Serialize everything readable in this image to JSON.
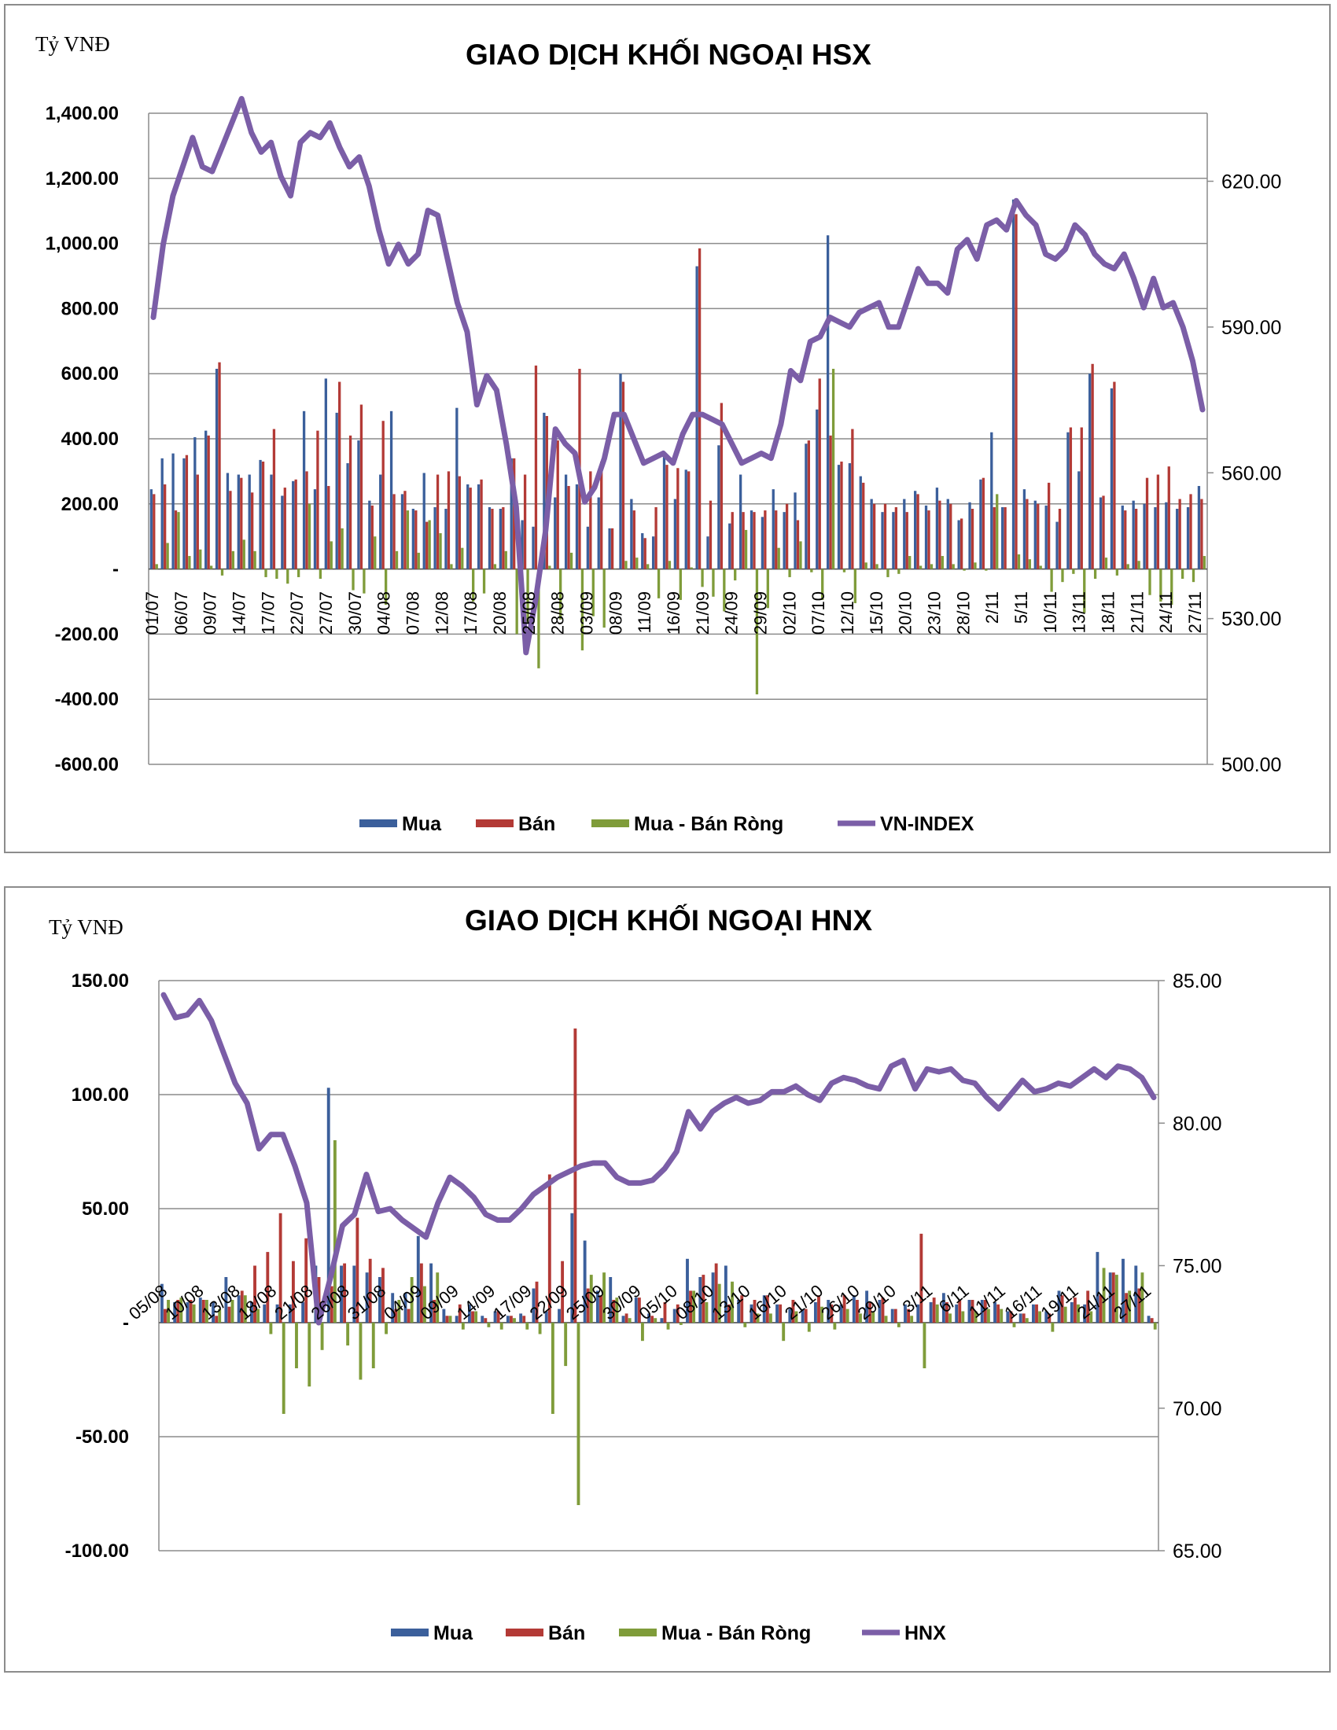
{
  "colors": {
    "buy": "#3b5f9b",
    "sell": "#b33a36",
    "net": "#7f9c3a",
    "index": "#7b5ea7",
    "grid": "#8c8c8c"
  },
  "chart_data": [
    {
      "type": "bar",
      "title": "GIAO DỊCH KHỐI NGOẠI HSX",
      "unit_label": "Tỷ VNĐ",
      "ylim": [
        -600,
        1400
      ],
      "y_ticks": [
        "1,400.00",
        "1,200.00",
        "1,000.00",
        "800.00",
        "600.00",
        "400.00",
        "200.00",
        "-",
        "-200.00",
        "-400.00",
        "-600.00"
      ],
      "y2_ticks": [
        "620.00",
        "590.00",
        "560.00",
        "530.00",
        "500.00"
      ],
      "y2lim": [
        500,
        634
      ],
      "x_tick_labels": [
        "01/07",
        "06/07",
        "09/07",
        "14/07",
        "17/07",
        "22/07",
        "27/07",
        "30/07",
        "04/08",
        "07/08",
        "12/08",
        "17/08",
        "20/08",
        "25/08",
        "28/08",
        "03/09",
        "08/09",
        "11/09",
        "16/09",
        "21/09",
        "24/09",
        "29/09",
        "02/10",
        "07/10",
        "12/10",
        "15/10",
        "20/10",
        "23/10",
        "28/10",
        "2/11",
        "5/11",
        "10/11",
        "13/11",
        "18/11",
        "21/11",
        "24/11",
        "27/11"
      ],
      "legend": [
        "Mua",
        "Bán",
        "Mua - Bán Ròng",
        "VN-INDEX"
      ],
      "legend_position": "bottom",
      "grid": true,
      "series": [
        {
          "name": "Mua",
          "axis": "left",
          "values": [
            245,
            340,
            355,
            340,
            405,
            425,
            615,
            295,
            290,
            290,
            335,
            290,
            225,
            270,
            485,
            245,
            585,
            480,
            325,
            395,
            210,
            290,
            485,
            230,
            185,
            295,
            190,
            185,
            495,
            260,
            260,
            190,
            185,
            340,
            150,
            130,
            480,
            220,
            290,
            260,
            130,
            220,
            125,
            600,
            215,
            110,
            100,
            345,
            215,
            305,
            930,
            100,
            380,
            140,
            290,
            180,
            160,
            245,
            175,
            235,
            385,
            490,
            1025,
            320,
            325,
            285,
            215,
            175,
            175,
            215,
            240,
            195,
            250,
            215,
            150,
            205,
            275,
            420,
            190,
            1135,
            245,
            210,
            195,
            145,
            420,
            300,
            600,
            220,
            555,
            195,
            210,
            200,
            190,
            205,
            185,
            190,
            255
          ]
        },
        {
          "name": "Bán",
          "axis": "left",
          "values": [
            230,
            260,
            180,
            350,
            290,
            410,
            635,
            240,
            280,
            235,
            330,
            430,
            250,
            275,
            300,
            425,
            255,
            575,
            410,
            505,
            195,
            455,
            230,
            240,
            180,
            145,
            290,
            300,
            285,
            250,
            275,
            185,
            190,
            340,
            290,
            625,
            470,
            395,
            255,
            615,
            300,
            330,
            125,
            575,
            180,
            95,
            190,
            320,
            310,
            300,
            985,
            210,
            510,
            175,
            175,
            175,
            180,
            180,
            200,
            150,
            395,
            585,
            410,
            330,
            430,
            265,
            200,
            200,
            190,
            175,
            230,
            180,
            210,
            200,
            155,
            185,
            280,
            190,
            190,
            1090,
            215,
            200,
            265,
            185,
            435,
            435,
            630,
            225,
            575,
            180,
            185,
            280,
            290,
            315,
            215,
            230,
            215
          ]
        },
        {
          "name": "Mua - Bán Ròng",
          "axis": "left",
          "values": [
            15,
            80,
            175,
            40,
            60,
            10,
            -20,
            55,
            90,
            55,
            -25,
            -30,
            -45,
            -25,
            200,
            -30,
            85,
            125,
            -65,
            -75,
            100,
            -110,
            55,
            180,
            50,
            150,
            110,
            15,
            65,
            -100,
            -75,
            15,
            55,
            -200,
            -165,
            -305,
            10,
            -155,
            50,
            -250,
            -145,
            -180,
            0,
            25,
            35,
            15,
            -90,
            25,
            -95,
            5,
            -55,
            -85,
            -130,
            -35,
            120,
            -385,
            -120,
            65,
            -25,
            85,
            -10,
            -95,
            615,
            -10,
            -105,
            20,
            15,
            -25,
            -15,
            40,
            10,
            15,
            40,
            15,
            -5,
            20,
            -5,
            230,
            0,
            45,
            30,
            10,
            -70,
            -40,
            -15,
            -135,
            -30,
            35,
            -20,
            15,
            25,
            -80,
            -100,
            -110,
            -30,
            -40,
            40
          ]
        },
        {
          "name": "VN-INDEX",
          "axis": "right",
          "values": [
            592,
            607,
            617,
            623,
            629,
            623,
            622,
            627,
            632,
            637,
            630,
            626,
            628,
            621,
            617,
            628,
            630,
            629,
            632,
            627,
            623,
            625,
            619,
            610,
            603,
            607,
            603,
            605,
            614,
            613,
            604,
            595,
            589,
            574,
            580,
            577,
            566,
            553,
            523,
            534,
            548,
            569,
            566,
            564,
            554,
            557,
            563,
            572,
            572,
            567,
            562,
            563,
            564,
            562,
            568,
            572,
            572,
            571,
            570,
            566,
            562,
            563,
            564,
            563,
            570,
            581,
            579,
            587,
            588,
            592,
            591,
            590,
            593,
            594,
            595,
            590,
            590,
            596,
            602,
            599,
            599,
            597,
            606,
            608,
            604,
            611,
            612,
            610,
            616,
            613,
            611,
            605,
            604,
            606,
            611,
            609,
            605,
            603,
            602,
            605,
            600,
            594,
            600,
            594,
            595,
            590,
            583,
            573
          ]
        }
      ]
    },
    {
      "type": "bar",
      "title": "GIAO DỊCH KHỐI NGOẠI HNX",
      "unit_label": "Tỷ VNĐ",
      "ylim": [
        -100,
        150
      ],
      "y_ticks": [
        "150.00",
        "100.00",
        "50.00",
        "-",
        "-50.00",
        "-100.00"
      ],
      "y2_ticks": [
        "85.00",
        "80.00",
        "75.00",
        "70.00",
        "65.00"
      ],
      "y2lim": [
        65,
        85
      ],
      "x_tick_labels": [
        "05/08",
        "10/08",
        "13/08",
        "18/08",
        "21/08",
        "26/08",
        "31/08",
        "04/09",
        "09/09",
        "14/09",
        "17/09",
        "22/09",
        "25/09",
        "30/09",
        "05/10",
        "08/10",
        "13/10",
        "16/10",
        "21/10",
        "26/10",
        "29/10",
        "3/11",
        "6/11",
        "11/11",
        "16/11",
        "19/11",
        "24/11",
        "27/11"
      ],
      "legend": [
        "Mua",
        "Bán",
        "Mua - Bán Ròng",
        "HNX"
      ],
      "legend_position": "bottom",
      "grid": true,
      "series": [
        {
          "name": "Mua",
          "axis": "left",
          "values": [
            17,
            9,
            9,
            11,
            9,
            20,
            12,
            9,
            8,
            8,
            8,
            9,
            25,
            103,
            25,
            25,
            22,
            20,
            13,
            13,
            38,
            26,
            6,
            3,
            8,
            3,
            5,
            3,
            4,
            15,
            5,
            6,
            48,
            36,
            14,
            20,
            3,
            11,
            4,
            2,
            6,
            28,
            20,
            22,
            25,
            10,
            8,
            12,
            8,
            6,
            6,
            9,
            10,
            8,
            12,
            14,
            10,
            6,
            8,
            8,
            9,
            13,
            8,
            10,
            10,
            9,
            5,
            4,
            8,
            5,
            14,
            9,
            8,
            31,
            22,
            28,
            25,
            3
          ]
        },
        {
          "name": "Bán",
          "axis": "left",
          "values": [
            6,
            10,
            10,
            10,
            3,
            7,
            14,
            25,
            31,
            48,
            27,
            37,
            20,
            16,
            26,
            46,
            28,
            24,
            6,
            6,
            26,
            10,
            3,
            8,
            5,
            2,
            5,
            3,
            3,
            18,
            65,
            27,
            129,
            15,
            12,
            10,
            4,
            11,
            3,
            9,
            8,
            14,
            21,
            26,
            8,
            12,
            10,
            12,
            8,
            10,
            6,
            12,
            8,
            12,
            10,
            9,
            11,
            6,
            6,
            39,
            11,
            9,
            10,
            10,
            10,
            8,
            5,
            4,
            8,
            4,
            12,
            11,
            14,
            12,
            22,
            13,
            15,
            2
          ]
        },
        {
          "name": "Mua - Bán Ròng",
          "axis": "left",
          "values": [
            10,
            11,
            8,
            10,
            6,
            10,
            12,
            6,
            -5,
            -40,
            -20,
            -28,
            -12,
            80,
            -10,
            -25,
            -20,
            -5,
            10,
            20,
            16,
            22,
            3,
            -3,
            5,
            -2,
            -3,
            2,
            -3,
            -5,
            -40,
            -19,
            -80,
            21,
            22,
            11,
            2,
            -8,
            2,
            -3,
            -1,
            14,
            9,
            17,
            18,
            -2,
            4,
            4,
            -8,
            5,
            -4,
            7,
            -3,
            6,
            4,
            5,
            3,
            -2,
            3,
            -20,
            8,
            4,
            5,
            5,
            6,
            6,
            -2,
            2,
            5,
            -4,
            7,
            8,
            5,
            24,
            21,
            14,
            22,
            -3
          ]
        },
        {
          "name": "HNX",
          "axis": "right",
          "values": [
            84.5,
            83.7,
            83.8,
            84.3,
            83.6,
            82.5,
            81.4,
            80.7,
            79.1,
            79.6,
            79.6,
            78.5,
            77.2,
            73.0,
            74.6,
            76.4,
            76.8,
            78.2,
            76.9,
            77.0,
            76.6,
            76.3,
            76.0,
            77.2,
            78.1,
            77.8,
            77.4,
            76.8,
            76.6,
            76.6,
            77.0,
            77.5,
            77.8,
            78.1,
            78.3,
            78.5,
            78.6,
            78.6,
            78.1,
            77.9,
            77.9,
            78.0,
            78.4,
            79.0,
            80.4,
            79.8,
            80.4,
            80.7,
            80.9,
            80.7,
            80.8,
            81.1,
            81.1,
            81.3,
            81.0,
            80.8,
            81.4,
            81.6,
            81.5,
            81.3,
            81.2,
            82.0,
            82.2,
            81.2,
            81.9,
            81.8,
            81.9,
            81.5,
            81.4,
            80.9,
            80.5,
            81.0,
            81.5,
            81.1,
            81.2,
            81.4,
            81.3,
            81.6,
            81.9,
            81.6,
            82.0,
            81.9,
            81.6,
            80.9
          ]
        }
      ]
    }
  ]
}
